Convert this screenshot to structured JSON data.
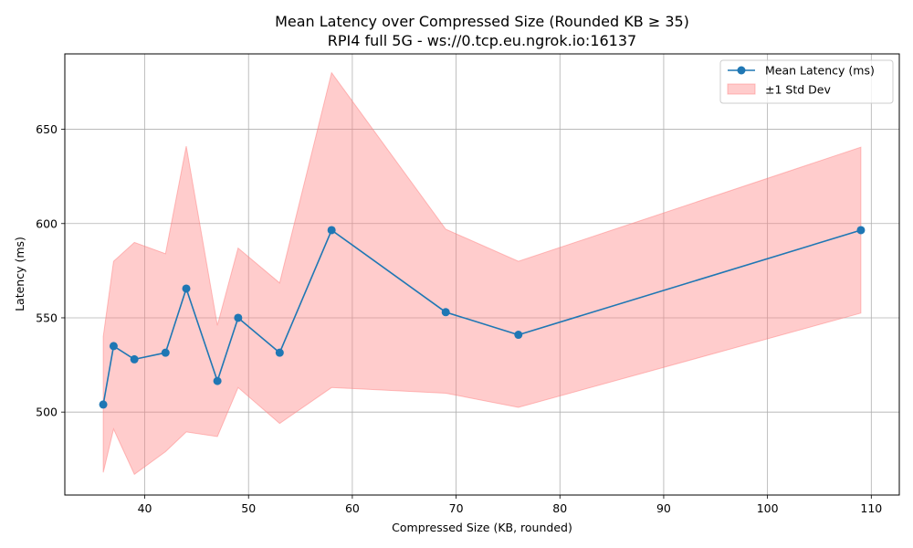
{
  "chart_data": {
    "type": "line",
    "title": "Mean Latency over Compressed Size (Rounded KB ≥ 35)",
    "subtitle": "RPI4 full 5G - ws://0.tcp.eu.ngrok.io:16137",
    "xlabel": "Compressed Size (KB, rounded)",
    "ylabel": "Latency (ms)",
    "xlim": [
      32.3,
      112.7
    ],
    "ylim": [
      456,
      690
    ],
    "xticks": [
      40,
      50,
      60,
      70,
      80,
      90,
      100,
      110
    ],
    "yticks": [
      500,
      550,
      600,
      650
    ],
    "grid": true,
    "legend_position": "top-right",
    "series": [
      {
        "name": "Mean Latency (ms)",
        "color": "#1f77b4",
        "marker": "circle",
        "x": [
          36,
          37,
          39,
          42,
          44,
          47,
          49,
          53,
          58,
          69,
          76,
          109
        ],
        "y": [
          504,
          535,
          528,
          531.5,
          565.5,
          516.5,
          550,
          531.5,
          596.5,
          553,
          541,
          596.5
        ]
      }
    ],
    "band": {
      "name": "±1 Std Dev",
      "color": "#ff7f7f",
      "x": [
        36,
        37,
        39,
        42,
        44,
        47,
        49,
        53,
        58,
        69,
        76,
        109
      ],
      "upper": [
        540,
        580,
        590,
        584,
        641,
        546,
        587,
        568.5,
        680,
        597,
        580,
        640.5
      ],
      "lower": [
        468,
        491,
        467,
        479,
        489.5,
        487,
        513,
        494,
        513,
        510,
        502.5,
        552.5
      ]
    }
  }
}
